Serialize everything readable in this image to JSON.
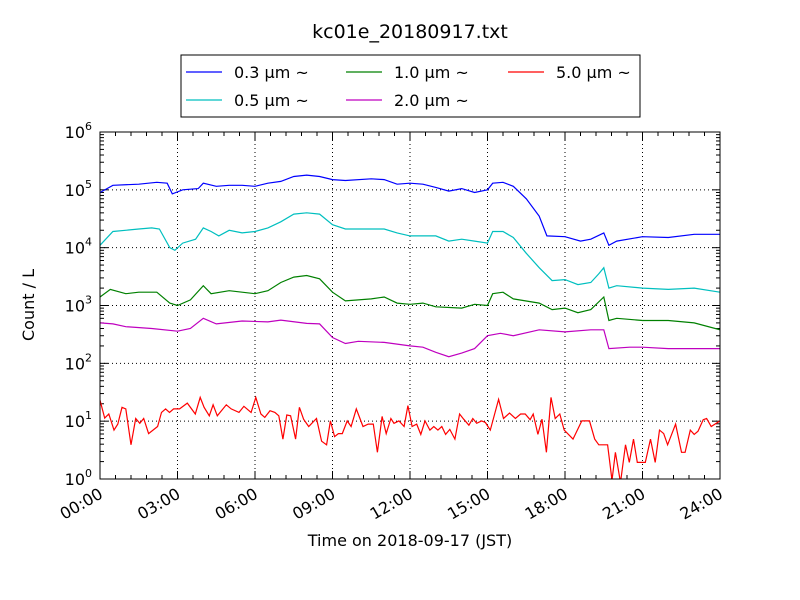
{
  "chart_data": {
    "type": "line",
    "title": "kc01e_20180917.txt",
    "xlabel": "Time on 2018-09-17 (JST)",
    "ylabel": "Count / L",
    "xlim": [
      0,
      24
    ],
    "ylim": [
      1,
      1000000
    ],
    "yscale": "log",
    "grid": true,
    "legend_placement": "top-center, above plot",
    "x_ticks": [
      {
        "value": 0,
        "label": "00:00"
      },
      {
        "value": 3,
        "label": "03:00"
      },
      {
        "value": 6,
        "label": "06:00"
      },
      {
        "value": 9,
        "label": "09:00"
      },
      {
        "value": 12,
        "label": "12:00"
      },
      {
        "value": 15,
        "label": "15:00"
      },
      {
        "value": 18,
        "label": "18:00"
      },
      {
        "value": 21,
        "label": "21:00"
      },
      {
        "value": 24,
        "label": "24:00"
      }
    ],
    "y_ticks": [
      {
        "value": 1,
        "base": "10",
        "exp": "0"
      },
      {
        "value": 10,
        "base": "10",
        "exp": "1"
      },
      {
        "value": 100,
        "base": "10",
        "exp": "2"
      },
      {
        "value": 1000,
        "base": "10",
        "exp": "3"
      },
      {
        "value": 10000,
        "base": "10",
        "exp": "4"
      },
      {
        "value": 100000,
        "base": "10",
        "exp": "5"
      },
      {
        "value": 1000000,
        "base": "10",
        "exp": "6"
      }
    ],
    "series": [
      {
        "name": "0.3 μm ~",
        "color": "#0000ff",
        "x": [
          0,
          0.5,
          1.5,
          2.2,
          2.6,
          2.8,
          3.2,
          3.8,
          4.0,
          4.5,
          5,
          5.5,
          6,
          6.5,
          7,
          7.5,
          8,
          8.5,
          9,
          9.5,
          10.5,
          11,
          11.5,
          12,
          12.5,
          13,
          13.5,
          14,
          14.5,
          15,
          15.2,
          15.6,
          16,
          16.5,
          17,
          17.3,
          18,
          18.6,
          19,
          19.5,
          19.7,
          20,
          21,
          22,
          23,
          24
        ],
        "y": [
          90000,
          120000,
          125000,
          135000,
          130000,
          85000,
          100000,
          105000,
          130000,
          115000,
          120000,
          120000,
          115000,
          130000,
          140000,
          170000,
          180000,
          170000,
          150000,
          145000,
          155000,
          150000,
          125000,
          130000,
          125000,
          110000,
          95000,
          105000,
          90000,
          100000,
          130000,
          135000,
          115000,
          70000,
          35000,
          16000,
          15500,
          13000,
          14000,
          18000,
          11000,
          13000,
          15500,
          15000,
          17000,
          17000
        ]
      },
      {
        "name": "0.5 μm ~",
        "color": "#00bfbf",
        "x": [
          0,
          0.5,
          1.5,
          2,
          2.3,
          2.7,
          2.9,
          3.2,
          3.7,
          4,
          4.3,
          4.6,
          5,
          5.5,
          6,
          6.5,
          7,
          7.5,
          8,
          8.5,
          9,
          9.5,
          11,
          11.5,
          12,
          13,
          13.5,
          14,
          14.5,
          15,
          15.2,
          15.6,
          16,
          16.5,
          17,
          17.5,
          18,
          18.5,
          19,
          19.3,
          19.5,
          19.7,
          20,
          21,
          22,
          23,
          24
        ],
        "y": [
          11000,
          19000,
          21000,
          22000,
          21000,
          10000,
          9000,
          12000,
          14000,
          22000,
          19000,
          16000,
          20000,
          18000,
          19000,
          22000,
          28000,
          38000,
          40000,
          38000,
          25000,
          21000,
          21000,
          18000,
          16000,
          16000,
          13000,
          14000,
          13000,
          12000,
          19000,
          19000,
          15000,
          8000,
          4500,
          2700,
          2800,
          2300,
          2500,
          3500,
          4500,
          2000,
          2200,
          2000,
          1900,
          2000,
          1700
        ]
      },
      {
        "name": "1.0 μm ~",
        "color": "#008000",
        "x": [
          0,
          0.4,
          1,
          1.5,
          2.2,
          2.7,
          3,
          3.5,
          4,
          4.3,
          5,
          6,
          6.5,
          7,
          7.5,
          8,
          8.5,
          9,
          9.5,
          10.5,
          11,
          11.5,
          12,
          12.5,
          13,
          14,
          14.5,
          15,
          15.2,
          15.6,
          16,
          17,
          17.5,
          18,
          18.5,
          19,
          19.5,
          19.7,
          20,
          21,
          22,
          23,
          24
        ],
        "y": [
          1400,
          1900,
          1600,
          1700,
          1700,
          1100,
          1000,
          1250,
          2200,
          1600,
          1800,
          1600,
          1800,
          2500,
          3100,
          3300,
          2900,
          1700,
          1200,
          1300,
          1400,
          1100,
          1050,
          1100,
          950,
          900,
          1050,
          1000,
          1600,
          1700,
          1300,
          1100,
          850,
          900,
          750,
          850,
          1400,
          550,
          600,
          550,
          550,
          500,
          380
        ]
      },
      {
        "name": "2.0 μm ~",
        "color": "#bf00bf",
        "x": [
          0,
          0.5,
          1,
          2,
          3,
          3.5,
          4,
          4.5,
          5.5,
          6.5,
          7,
          8,
          8.5,
          9,
          9.5,
          10,
          11,
          12,
          12.5,
          13,
          13.5,
          14,
          14.5,
          15,
          15.5,
          16,
          17,
          18,
          19,
          19.5,
          19.7,
          20.5,
          21,
          22,
          23,
          24
        ],
        "y": [
          500,
          480,
          430,
          400,
          360,
          400,
          600,
          480,
          540,
          520,
          560,
          490,
          480,
          280,
          220,
          240,
          230,
          200,
          190,
          155,
          130,
          150,
          180,
          300,
          330,
          300,
          380,
          350,
          380,
          380,
          180,
          190,
          190,
          180,
          180,
          180
        ]
      },
      {
        "name": "5.0 μm ~",
        "color": "#ff0000",
        "x": [
          0,
          0.18,
          0.34,
          0.54,
          0.69,
          0.85,
          1.0,
          1.2,
          1.38,
          1.54,
          1.69,
          1.88,
          2.23,
          2.38,
          2.54,
          2.69,
          2.85,
          3.08,
          3.38,
          3.69,
          3.88,
          4.03,
          4.23,
          4.38,
          4.54,
          4.89,
          5.08,
          5.38,
          5.57,
          5.85,
          6.03,
          6.23,
          6.38,
          6.58,
          6.77,
          6.92,
          7.08,
          7.23,
          7.38,
          7.57,
          7.72,
          7.88,
          8.08,
          8.38,
          8.58,
          8.77,
          8.92,
          9.08,
          9.23,
          9.38,
          9.57,
          9.72,
          9.92,
          10.18,
          10.38,
          10.58,
          10.74,
          10.92,
          11.08,
          11.26,
          11.38,
          11.57,
          11.77,
          11.92,
          12.08,
          12.26,
          12.42,
          12.58,
          12.77,
          12.92,
          13.08,
          13.23,
          13.38,
          13.54,
          13.74,
          13.92,
          14.08,
          14.28,
          14.43,
          14.58,
          14.77,
          14.92,
          15.11,
          15.43,
          15.62,
          15.85,
          16.08,
          16.28,
          16.46,
          16.65,
          16.77,
          16.95,
          17.11,
          17.28,
          17.46,
          17.62,
          17.8,
          17.97,
          18.31,
          18.65,
          18.95,
          19.15,
          19.31,
          19.65,
          19.82,
          19.95,
          20.15,
          20.34,
          20.49,
          20.65,
          20.8,
          21.11,
          21.31,
          21.49,
          21.66,
          21.82,
          21.97,
          22.28,
          22.51,
          22.65,
          22.85,
          23.0,
          23.15,
          23.35,
          23.48,
          23.66,
          24
        ],
        "y": [
          23,
          11.3,
          13.3,
          7.0,
          8.9,
          17.4,
          16.3,
          3.9,
          11.1,
          9.2,
          11.1,
          6.1,
          8.1,
          14.2,
          16.3,
          14.2,
          16.3,
          16.3,
          20.5,
          13.3,
          25.8,
          17.4,
          12.4,
          19.2,
          12.4,
          19.2,
          16.3,
          14.2,
          18.1,
          14.2,
          25.8,
          13.3,
          11.6,
          15.2,
          14.2,
          12.4,
          4.9,
          12.8,
          12.4,
          4.9,
          17.4,
          10.8,
          8.1,
          11.1,
          4.5,
          3.9,
          10.1,
          5.4,
          6.1,
          6.1,
          10.1,
          8.1,
          16.3,
          8.1,
          8.9,
          8.9,
          2.9,
          12.1,
          6.1,
          11.1,
          9.2,
          10.1,
          8.1,
          18.6,
          8.1,
          8.9,
          5.9,
          10.1,
          7.0,
          8.1,
          7.0,
          8.1,
          5.9,
          7.2,
          4.9,
          13.3,
          10.8,
          8.5,
          11.1,
          9.2,
          10.1,
          9.5,
          7.0,
          23.8,
          11.1,
          13.8,
          11.1,
          13.3,
          13.3,
          10.6,
          13.3,
          5.9,
          10.8,
          2.9,
          25.8,
          11.1,
          13.3,
          7.0,
          4.9,
          10.1,
          10.1,
          4.9,
          3.9,
          3.9,
          0.95,
          2.9,
          0.87,
          3.9,
          1.94,
          4.9,
          1.94,
          1.94,
          4.9,
          1.94,
          7.0,
          6.1,
          3.9,
          8.9,
          2.9,
          2.9,
          7.0,
          5.9,
          6.7,
          10.6,
          11.1,
          8.1,
          10.1
        ]
      }
    ]
  }
}
